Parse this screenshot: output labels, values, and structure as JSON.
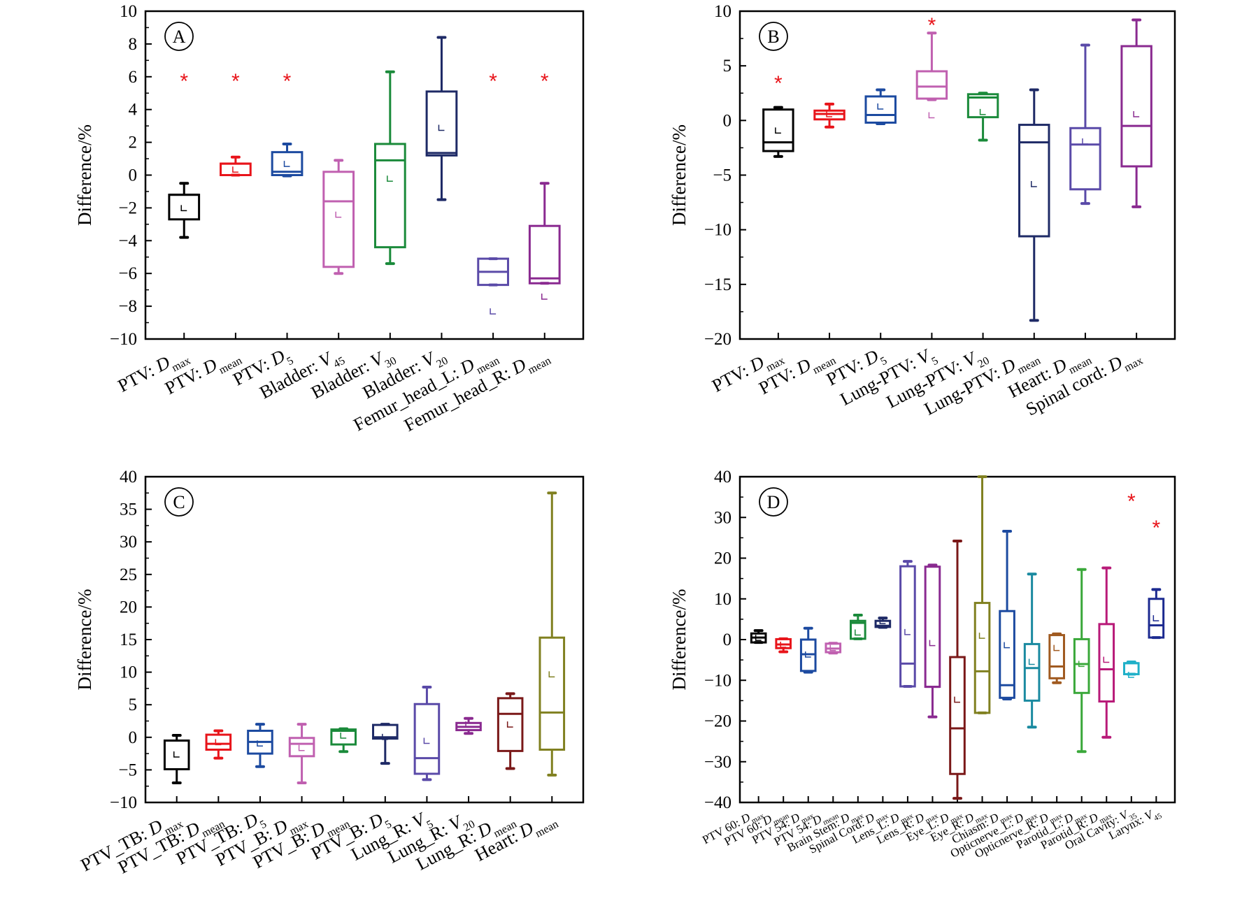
{
  "chart_data": [
    {
      "type": "box",
      "panel": "A",
      "ylabel": "Difference/%",
      "ylim": [
        -10,
        10
      ],
      "yticks": [
        -10,
        -8,
        -6,
        -4,
        -2,
        0,
        2,
        4,
        6,
        8,
        10
      ],
      "categories": [
        {
          "base": "PTV: ",
          "var": "D",
          "sub": "max"
        },
        {
          "base": "PTV:  ",
          "var": "D",
          "sub": "mean"
        },
        {
          "base": "PTV:  ",
          "var": "D",
          "sub": "5"
        },
        {
          "base": "Bladder: ",
          "var": "V",
          "sub": "45"
        },
        {
          "base": "Bladder: ",
          "var": "V",
          "sub": "30"
        },
        {
          "base": "Bladder: ",
          "var": "V",
          "sub": "20"
        },
        {
          "base": "Femur_head_L: ",
          "var": "D",
          "sub": "mean"
        },
        {
          "base": "Femur_head_R: ",
          "var": "D",
          "sub": "mean"
        }
      ],
      "boxes": [
        {
          "color": "#000000",
          "min": -3.8,
          "q1": -2.7,
          "median": -1.2,
          "q3": -1.2,
          "max": -0.5,
          "mean": -2.0,
          "outliers": [
            6.0
          ]
        },
        {
          "color": "#e8141a",
          "min": 0.0,
          "q1": 0.0,
          "median": 0.7,
          "q3": 0.7,
          "max": 1.1,
          "mean": 0.35,
          "outliers": [
            6.0
          ]
        },
        {
          "color": "#1c4aa0",
          "min": -0.05,
          "q1": 0.0,
          "median": 0.2,
          "q3": 1.4,
          "max": 1.9,
          "mean": 0.7,
          "outliers": [
            6.0
          ]
        },
        {
          "color": "#c060b0",
          "min": -6.0,
          "q1": -5.6,
          "median": -1.6,
          "q3": 0.2,
          "max": 0.9,
          "mean": -2.4,
          "outliers": []
        },
        {
          "color": "#1a8a3a",
          "min": -5.4,
          "q1": -4.4,
          "median": 0.9,
          "q3": 1.9,
          "max": 6.3,
          "mean": -0.2,
          "outliers": []
        },
        {
          "color": "#1e2a66",
          "min": -1.5,
          "q1": 1.2,
          "median": 1.35,
          "q3": 5.1,
          "max": 8.4,
          "mean": 2.9,
          "outliers": []
        },
        {
          "color": "#5a4aa8",
          "min": -6.7,
          "q1": -6.7,
          "median": -5.9,
          "q3": -5.1,
          "max": -5.1,
          "mean": -8.3,
          "outliers": [
            6.0
          ]
        },
        {
          "color": "#8a2a90",
          "min": -6.6,
          "q1": -6.6,
          "median": -6.3,
          "q3": -3.1,
          "max": -0.5,
          "mean": -7.4,
          "outliers": [
            6.0
          ]
        }
      ]
    },
    {
      "type": "box",
      "panel": "B",
      "ylabel": "Difference/%",
      "ylim": [
        -20,
        10
      ],
      "yticks": [
        -20,
        -15,
        -10,
        -5,
        0,
        5,
        10
      ],
      "categories": [
        {
          "base": "PTV: ",
          "var": "D",
          "sub": "max"
        },
        {
          "base": "PTV:  ",
          "var": "D",
          "sub": "mean"
        },
        {
          "base": "PTV:  ",
          "var": "D",
          "sub": "5"
        },
        {
          "base": "Lung-PTV: ",
          "var": "V",
          "sub": "5"
        },
        {
          "base": "Lung-PTV: ",
          "var": "V",
          "sub": "20"
        },
        {
          "base": "Lung-PTV: ",
          "var": "D",
          "sub": "mean"
        },
        {
          "base": "Heart: ",
          "var": "D",
          "sub": "mean"
        },
        {
          "base": "Spinal cord: ",
          "var": "D",
          "sub": "max"
        }
      ],
      "boxes": [
        {
          "color": "#000000",
          "min": -3.3,
          "q1": -2.8,
          "median": -2.0,
          "q3": 1.0,
          "max": 1.2,
          "mean": -0.9,
          "outliers": [
            3.8
          ]
        },
        {
          "color": "#e8141a",
          "min": -0.6,
          "q1": 0.1,
          "median": 0.6,
          "q3": 0.9,
          "max": 1.5,
          "mean": 0.6,
          "outliers": []
        },
        {
          "color": "#1c4aa0",
          "min": -0.3,
          "q1": -0.2,
          "median": 0.5,
          "q3": 2.2,
          "max": 2.8,
          "mean": 1.3,
          "outliers": []
        },
        {
          "color": "#c060b0",
          "min": 1.9,
          "q1": 2.0,
          "median": 3.1,
          "q3": 4.5,
          "max": 8.0,
          "mean": 0.5,
          "outliers": [
            9.1
          ]
        },
        {
          "color": "#1a8a3a",
          "min": -1.8,
          "q1": 0.3,
          "median": 2.1,
          "q3": 2.4,
          "max": 2.5,
          "mean": 0.8,
          "outliers": []
        },
        {
          "color": "#1e2a66",
          "min": -18.3,
          "q1": -10.6,
          "median": -2.0,
          "q3": -0.4,
          "max": 2.8,
          "mean": -5.8,
          "outliers": []
        },
        {
          "color": "#5a4aa8",
          "min": -7.6,
          "q1": -6.3,
          "median": -2.2,
          "q3": -0.7,
          "max": 6.9,
          "mean": -1.9,
          "outliers": []
        },
        {
          "color": "#8a2a90",
          "min": -7.9,
          "q1": -4.2,
          "median": -0.5,
          "q3": 6.8,
          "max": 9.2,
          "mean": 0.6,
          "outliers": []
        }
      ]
    },
    {
      "type": "box",
      "panel": "C",
      "ylabel": "Difference/%",
      "ylim": [
        -10,
        40
      ],
      "yticks": [
        -10,
        -5,
        0,
        5,
        10,
        15,
        20,
        25,
        30,
        35,
        40
      ],
      "categories": [
        {
          "base": "PTV_TB: ",
          "var": "D",
          "sub": "max"
        },
        {
          "base": "PTV_TB:  ",
          "var": "D",
          "sub": "mean"
        },
        {
          "base": "PTV_TB:  ",
          "var": "D",
          "sub": "5"
        },
        {
          "base": "PTV_B:  ",
          "var": "D",
          "sub": "max"
        },
        {
          "base": "PTV_B:  ",
          "var": "D",
          "sub": "mean"
        },
        {
          "base": "PTV_B:  ",
          "var": "D",
          "sub": "5"
        },
        {
          "base": "Lung_R:  ",
          "var": "V",
          "sub": "5"
        },
        {
          "base": "Lung_R:  ",
          "var": "V",
          "sub": "20"
        },
        {
          "base": "Lung_R:  ",
          "var": "D",
          "sub": "mean"
        },
        {
          "base": "Heart: ",
          "var": "D",
          "sub": "mean"
        }
      ],
      "boxes": [
        {
          "color": "#000000",
          "min": -7.0,
          "q1": -4.9,
          "median": -0.5,
          "q3": -0.5,
          "max": 0.3,
          "mean": -2.6,
          "outliers": []
        },
        {
          "color": "#e8141a",
          "min": -3.2,
          "q1": -1.9,
          "median": -1.0,
          "q3": 0.4,
          "max": 1.0,
          "mean": -0.7,
          "outliers": []
        },
        {
          "color": "#1c4aa0",
          "min": -4.5,
          "q1": -2.5,
          "median": -0.7,
          "q3": 1.0,
          "max": 2.0,
          "mean": -0.9,
          "outliers": []
        },
        {
          "color": "#c060b0",
          "min": -7.0,
          "q1": -2.9,
          "median": -1.0,
          "q3": -0.1,
          "max": 2.0,
          "mean": -1.6,
          "outliers": []
        },
        {
          "color": "#1a8a3a",
          "min": -2.2,
          "q1": -1.1,
          "median": 1.0,
          "q3": 1.2,
          "max": 1.3,
          "mean": 0.3,
          "outliers": []
        },
        {
          "color": "#1e2a66",
          "min": -4.0,
          "q1": -0.2,
          "median": 0.0,
          "q3": 1.9,
          "max": 2.0,
          "mean": 0.1,
          "outliers": []
        },
        {
          "color": "#5a4aa8",
          "min": -6.5,
          "q1": -5.6,
          "median": -3.2,
          "q3": 5.1,
          "max": 7.7,
          "mean": -0.5,
          "outliers": []
        },
        {
          "color": "#8a2a90",
          "min": 0.6,
          "q1": 1.1,
          "median": 1.6,
          "q3": 2.2,
          "max": 2.9,
          "mean": 2.0,
          "outliers": []
        },
        {
          "color": "#7a1818",
          "min": -4.8,
          "q1": -2.1,
          "median": 3.6,
          "q3": 6.0,
          "max": 6.7,
          "mean": 2.0,
          "outliers": []
        },
        {
          "color": "#808020",
          "min": -5.8,
          "q1": -1.9,
          "median": 3.8,
          "q3": 15.3,
          "max": 37.5,
          "mean": 9.7,
          "outliers": []
        }
      ]
    },
    {
      "type": "box",
      "panel": "D",
      "ylabel": "Difference/%",
      "ylim": [
        -40,
        40
      ],
      "yticks": [
        -40,
        -30,
        -20,
        -10,
        0,
        10,
        20,
        30,
        40
      ],
      "categories": [
        {
          "base": "PTV 60: ",
          "var": "D",
          "sub": "max"
        },
        {
          "base": "PTV 60: ",
          "var": "D",
          "sub": "mean"
        },
        {
          "base": "PTV 54: ",
          "var": "D",
          "sub": "max"
        },
        {
          "base": "PTV 54: ",
          "var": "D",
          "sub": "mean"
        },
        {
          "base": "Brain Stem: ",
          "var": "D",
          "sub": "max"
        },
        {
          "base": "Spinal Cord: ",
          "var": "D",
          "sub": "max"
        },
        {
          "base": "Lens_L: ",
          "var": "D",
          "sub": "max"
        },
        {
          "base": "Lens_R: ",
          "var": "D",
          "sub": "max"
        },
        {
          "base": "Eye_L: ",
          "var": "D",
          "sub": "max"
        },
        {
          "base": "Eye_R: ",
          "var": "D",
          "sub": "max"
        },
        {
          "base": "Chiasm: ",
          "var": "D",
          "sub": "max"
        },
        {
          "base": "Opticnerve_L: ",
          "var": "D",
          "sub": "max"
        },
        {
          "base": "Opticnerve_R: ",
          "var": "D",
          "sub": "max"
        },
        {
          "base": "Parotid_L: ",
          "var": "D",
          "sub": "max"
        },
        {
          "base": "Parotid_R: ",
          "var": "D",
          "sub": "max"
        },
        {
          "base": "Oral Cavity: ",
          "var": "V",
          "sub": "35"
        },
        {
          "base": "Larynx: ",
          "var": "V",
          "sub": "45"
        }
      ],
      "boxes": [
        {
          "color": "#000000",
          "min": -0.7,
          "q1": -0.7,
          "median": 0.5,
          "q3": 1.5,
          "max": 2.2,
          "mean": 0.5,
          "outliers": []
        },
        {
          "color": "#e8141a",
          "min": -3.0,
          "q1": -2.1,
          "median": -1.2,
          "q3": 0.1,
          "max": 0.2,
          "mean": -1.2,
          "outliers": []
        },
        {
          "color": "#1c4aa0",
          "min": -8.0,
          "q1": -7.7,
          "median": -3.6,
          "q3": 0.0,
          "max": 2.8,
          "mean": -3.6,
          "outliers": []
        },
        {
          "color": "#c060b0",
          "min": -3.3,
          "q1": -3.1,
          "median": -2.2,
          "q3": -1.0,
          "max": -0.9,
          "mean": -2.0,
          "outliers": []
        },
        {
          "color": "#1a8a3a",
          "min": 0.2,
          "q1": 0.2,
          "median": 4.1,
          "q3": 4.6,
          "max": 6.0,
          "mean": 1.8,
          "outliers": []
        },
        {
          "color": "#1e2a66",
          "min": 3.0,
          "q1": 3.1,
          "median": 3.4,
          "q3": 4.6,
          "max": 5.3,
          "mean": 4.6,
          "outliers": []
        },
        {
          "color": "#5a4aa8",
          "min": -11.5,
          "q1": -11.5,
          "median": -5.9,
          "q3": 18.0,
          "max": 19.2,
          "mean": 1.9,
          "outliers": []
        },
        {
          "color": "#8a2a90",
          "min": -19.0,
          "q1": -11.6,
          "median": -11.6,
          "q3": 17.9,
          "max": 18.3,
          "mean": -0.8,
          "outliers": []
        },
        {
          "color": "#7a1818",
          "min": -39.0,
          "q1": -33.0,
          "median": -21.8,
          "q3": -4.3,
          "max": 24.2,
          "mean": -14.7,
          "outliers": []
        },
        {
          "color": "#808020",
          "min": -18.0,
          "q1": -18.0,
          "median": -7.8,
          "q3": 9.0,
          "max": 40.0,
          "mean": 1.0,
          "outliers": []
        },
        {
          "color": "#1c4aa0",
          "min": -14.6,
          "q1": -14.3,
          "median": -11.2,
          "q3": 7.0,
          "max": 26.6,
          "mean": -1.3,
          "outliers": []
        },
        {
          "color": "#1a8aa0",
          "min": -21.5,
          "q1": -15.0,
          "median": -7.0,
          "q3": -1.1,
          "max": 16.1,
          "mean": -5.4,
          "outliers": []
        },
        {
          "color": "#a05a20",
          "min": -10.6,
          "q1": -9.5,
          "median": -6.6,
          "q3": 1.1,
          "max": 1.4,
          "mean": -2.0,
          "outliers": []
        },
        {
          "color": "#3aa83a",
          "min": -27.5,
          "q1": -13.1,
          "median": -6.0,
          "q3": 0.1,
          "max": 17.2,
          "mean": -5.9,
          "outliers": []
        },
        {
          "color": "#b81a78",
          "min": -24.0,
          "q1": -15.2,
          "median": -7.3,
          "q3": 3.8,
          "max": 17.6,
          "mean": -4.9,
          "outliers": []
        },
        {
          "color": "#20b0c8",
          "min": -8.5,
          "q1": -8.5,
          "median": -5.8,
          "q3": -5.8,
          "max": -5.5,
          "mean": -8.6,
          "outliers": [
            35.0
          ]
        },
        {
          "color": "#1c2a90",
          "min": 0.5,
          "q1": 0.5,
          "median": 3.5,
          "q3": 10.0,
          "max": 12.3,
          "mean": 5.3,
          "outliers": [
            28.5
          ]
        }
      ]
    }
  ]
}
